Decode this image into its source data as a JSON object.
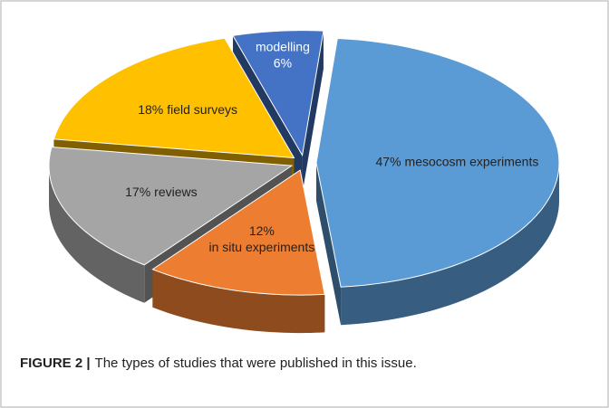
{
  "chart_data": {
    "type": "pie3d",
    "categories": [
      "mesocosm experiments",
      "in situ experiments",
      "reviews",
      "field surveys",
      "modelling"
    ],
    "values": [
      47,
      12,
      17,
      18,
      6
    ],
    "value_labels": [
      "47%",
      "12%",
      "17%",
      "18%",
      "6%"
    ],
    "colors": [
      "#5b9bd5",
      "#ed7d31",
      "#a5a5a5",
      "#ffc000",
      "#4472c4"
    ]
  },
  "caption": {
    "label": "FIGURE 2 |",
    "text": "The types of studies that were published in this issue."
  }
}
